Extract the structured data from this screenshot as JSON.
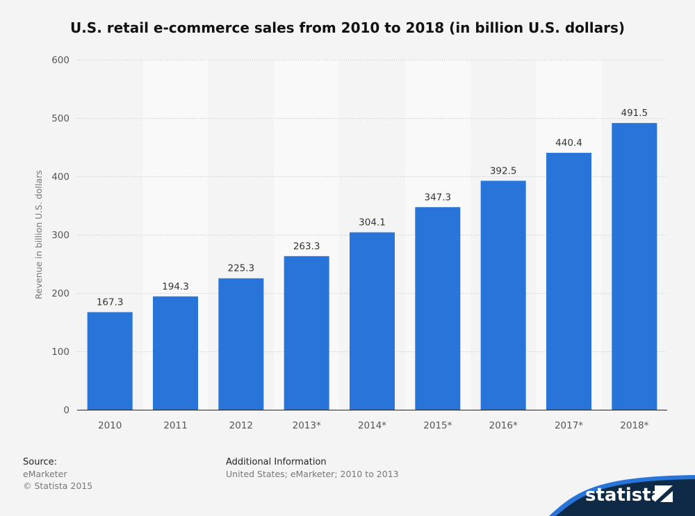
{
  "chart_data": {
    "type": "bar",
    "title": "U.S. retail e-commerce sales from 2010 to 2018 (in billion U.S. dollars)",
    "xlabel": "",
    "ylabel": "Revenue in billion U.S. dollars",
    "categories": [
      "2010",
      "2011",
      "2012",
      "2013*",
      "2014*",
      "2015*",
      "2016*",
      "2017*",
      "2018*"
    ],
    "values": [
      167.3,
      194.3,
      225.3,
      263.3,
      304.1,
      347.3,
      392.5,
      440.4,
      491.5
    ],
    "data_labels": [
      "167.3",
      "194.3",
      "225.3",
      "263.3",
      "304.1",
      "347.3",
      "392.5",
      "440.4",
      "491.5"
    ],
    "ylim": [
      0,
      600
    ],
    "yticks": [
      0,
      100,
      200,
      300,
      400,
      500,
      600
    ],
    "grid": true,
    "bar_color": "#2874d9"
  },
  "footer": {
    "source_heading": "Source:",
    "source_lines": [
      "eMarketer",
      "© Statista 2015"
    ],
    "info_heading": "Additional Information",
    "info_text": "United States; eMarketer; 2010 to 2013"
  },
  "brand": {
    "name": "statista",
    "colors": {
      "dark": "#0e2a47",
      "accent": "#2874d9"
    }
  }
}
